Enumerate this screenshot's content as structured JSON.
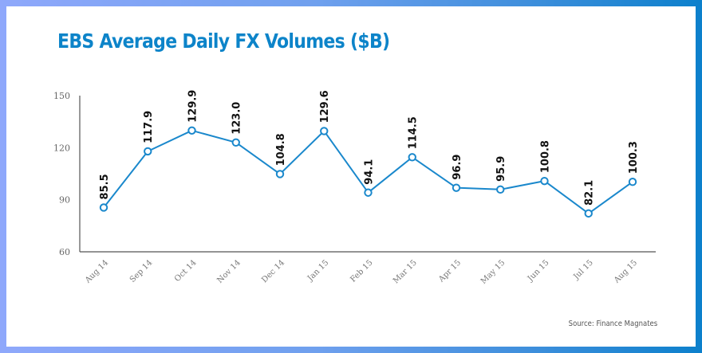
{
  "chart_data": {
    "type": "line",
    "title": "EBS Average Daily FX Volumes ($B)",
    "xlabel": "",
    "ylabel": "",
    "source": "Source: Finance Magnates",
    "categories": [
      "Aug 14",
      "Sep 14",
      "Oct 14",
      "Nov 14",
      "Dec 14",
      "Jan 15",
      "Feb 15",
      "Mar 15",
      "Apr 15",
      "May 15",
      "Jun 15",
      "Jul 15",
      "Aug 15"
    ],
    "series": [
      {
        "name": "EBS Average Daily FX Volumes ($B)",
        "values": [
          85.5,
          117.9,
          129.9,
          123.0,
          104.8,
          129.6,
          94.1,
          114.5,
          96.9,
          95.9,
          100.8,
          82.1,
          100.3
        ],
        "labels": [
          "85.5",
          "117.9",
          "129.9",
          "123.0",
          "104.8",
          "129.6",
          "94.1",
          "114.5",
          "96.9",
          "95.9",
          "100.8",
          "82.1",
          "100.3"
        ]
      }
    ],
    "ylim": [
      60,
      150
    ],
    "yticks": [
      60,
      90,
      120,
      150
    ],
    "ytick_labels": [
      "60",
      "90",
      "120",
      "150"
    ],
    "grid": false,
    "legend": "none",
    "colors": {
      "line": "#1a88cc",
      "title": "#0d84c9",
      "axis": "#555555",
      "marker_fill": "#ffffff"
    }
  }
}
